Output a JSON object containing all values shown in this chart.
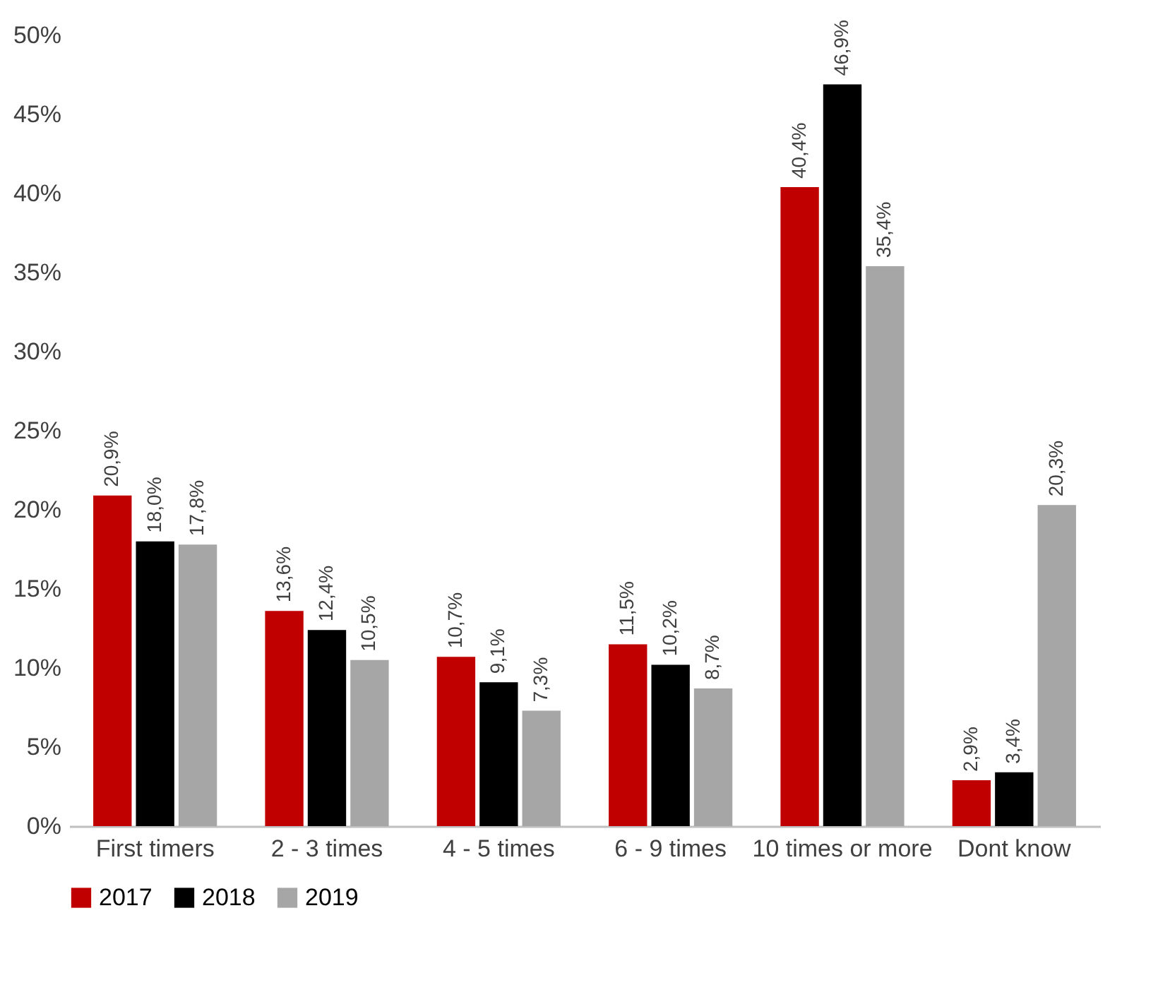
{
  "chart_data": {
    "type": "bar",
    "categories": [
      "First timers",
      "2 - 3 times",
      "4 - 5 times",
      "6 - 9 times",
      "10 times or more",
      "Dont know"
    ],
    "series": [
      {
        "name": "2017",
        "color": "#c00000",
        "values": [
          20.9,
          13.6,
          10.7,
          11.5,
          40.4,
          2.9
        ],
        "value_labels": [
          "20,9%",
          "13,6%",
          "10,7%",
          "11,5%",
          "40,4%",
          "2,9%"
        ]
      },
      {
        "name": "2018",
        "color": "#000000",
        "values": [
          18.0,
          12.4,
          9.1,
          10.2,
          46.9,
          3.4
        ],
        "value_labels": [
          "18,0%",
          "12,4%",
          "9,1%",
          "10,2%",
          "46,9%",
          "3,4%"
        ]
      },
      {
        "name": "2019",
        "color": "#a6a6a6",
        "values": [
          17.8,
          10.5,
          7.3,
          8.7,
          35.4,
          20.3
        ],
        "value_labels": [
          "17,8%",
          "10,5%",
          "7,3%",
          "8,7%",
          "35,4%",
          "20,3%"
        ]
      }
    ],
    "ylim": [
      0,
      50
    ],
    "yticks": [
      {
        "value": 0,
        "label": "0%"
      },
      {
        "value": 5,
        "label": "5%"
      },
      {
        "value": 10,
        "label": "10%"
      },
      {
        "value": 15,
        "label": "15%"
      },
      {
        "value": 20,
        "label": "20%"
      },
      {
        "value": 25,
        "label": "25%"
      },
      {
        "value": 30,
        "label": "30%"
      },
      {
        "value": 35,
        "label": "35%"
      },
      {
        "value": 40,
        "label": "40%"
      },
      {
        "value": 45,
        "label": "45%"
      },
      {
        "value": 50,
        "label": "50%"
      }
    ],
    "grid": false,
    "legend": "bottom"
  }
}
